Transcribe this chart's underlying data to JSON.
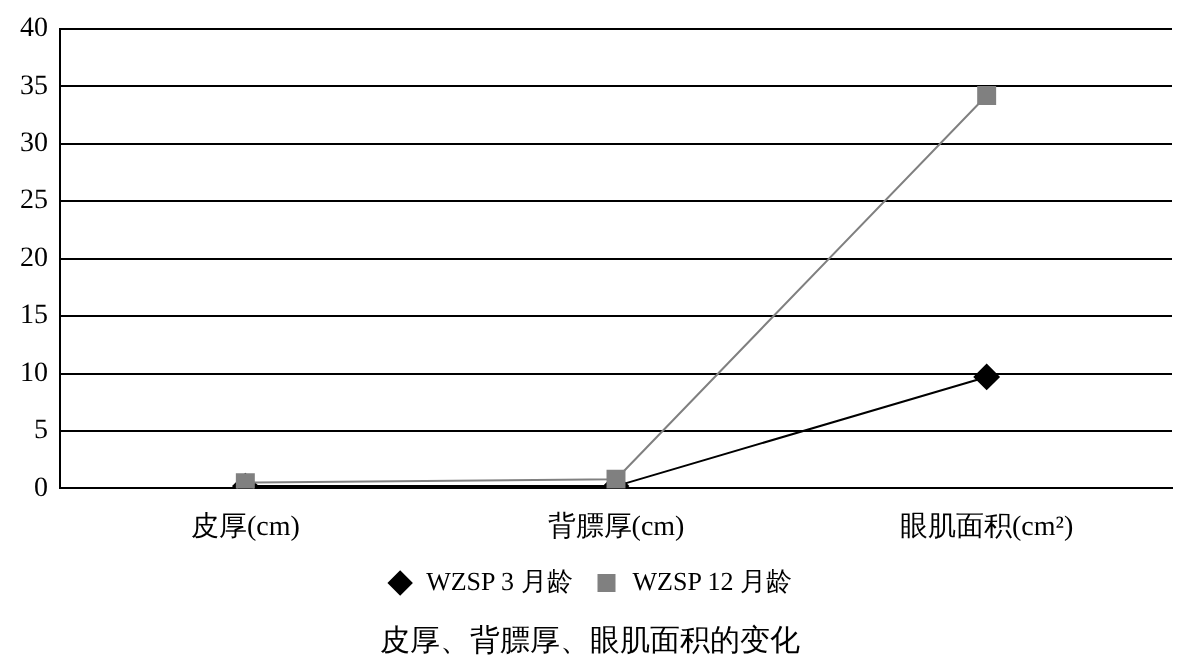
{
  "chart_data": {
    "type": "line",
    "title": "皮厚、背膘厚、眼肌面积的变化",
    "categories": [
      "皮厚(cm)",
      "背膘厚(cm)",
      "眼肌面积(cm²)"
    ],
    "series": [
      {
        "name": "WZSP 3 月龄",
        "color": "#000000",
        "marker": "diamond",
        "values": [
          0.2,
          0.2,
          9.7
        ]
      },
      {
        "name": "WZSP 12 月龄",
        "color": "#808080",
        "marker": "square",
        "values": [
          0.5,
          0.8,
          34.2
        ]
      }
    ],
    "ylim": [
      0,
      40
    ],
    "yticks": [
      0,
      5,
      10,
      15,
      20,
      25,
      30,
      35,
      40
    ],
    "grid": "y",
    "legend": "bottom"
  }
}
